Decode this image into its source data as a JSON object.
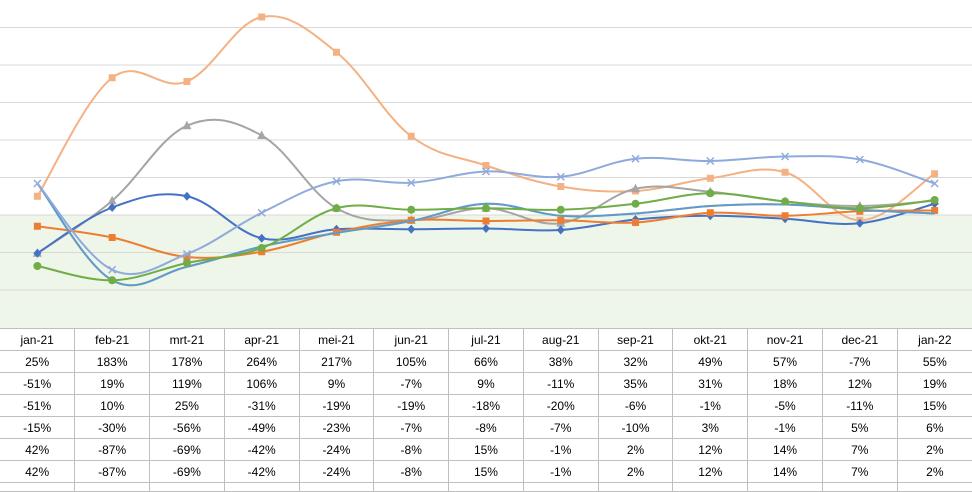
{
  "chart_data": {
    "type": "line",
    "categories": [
      "jan-21",
      "feb-21",
      "mrt-21",
      "apr-21",
      "mei-21",
      "jun-21",
      "jul-21",
      "aug-21",
      "sep-21",
      "okt-21",
      "nov-21",
      "dec-21",
      "jan-22"
    ],
    "ylim": [
      -100,
      300
    ],
    "grid": true,
    "legend": "none",
    "colors": {
      "band": "#eef5e9",
      "grid": "#d9d9d9"
    },
    "series": [
      {
        "color": "#f4b183",
        "marker": "square",
        "values": [
          25,
          183,
          178,
          264,
          217,
          105,
          66,
          38,
          32,
          49,
          57,
          -7,
          55
        ]
      },
      {
        "color": "#a5a5a5",
        "marker": "triangle",
        "values": [
          -51,
          19,
          119,
          106,
          9,
          -7,
          9,
          -11,
          35,
          31,
          18,
          12,
          19
        ]
      },
      {
        "color": "#4472c4",
        "marker": "diamond",
        "values": [
          -51,
          10,
          25,
          -31,
          -19,
          -19,
          -18,
          -20,
          -6,
          -1,
          -5,
          -11,
          15
        ]
      },
      {
        "color": "#ed7d31",
        "marker": "square",
        "values": [
          -15,
          -30,
          -56,
          -49,
          -23,
          -7,
          -8,
          -7,
          -10,
          3,
          -1,
          5,
          6
        ]
      },
      {
        "color": "#ffc000",
        "marker": "none",
        "values": [
          42,
          -87,
          -69,
          -42,
          -24,
          -8,
          15,
          -1,
          2,
          12,
          14,
          7,
          2
        ]
      },
      {
        "color": "#5b9bd5",
        "marker": "none",
        "values": [
          42,
          -87,
          -69,
          -42,
          -24,
          -8,
          15,
          -1,
          2,
          12,
          14,
          7,
          2
        ]
      },
      {
        "color": "#8faadc",
        "marker": "x",
        "values": [
          42,
          -73,
          -52,
          3,
          45,
          43,
          58,
          51,
          75,
          72,
          78,
          74,
          42
        ]
      },
      {
        "color": "#70ad47",
        "marker": "circle",
        "values": [
          -68,
          -87,
          -64,
          -44,
          9,
          7,
          9,
          7,
          15,
          29,
          18,
          9,
          20
        ]
      }
    ],
    "table": {
      "header": [
        "jan-21",
        "feb-21",
        "mrt-21",
        "apr-21",
        "mei-21",
        "jun-21",
        "jul-21",
        "aug-21",
        "sep-21",
        "okt-21",
        "nov-21",
        "dec-21",
        "jan-22"
      ],
      "rows": [
        [
          "25%",
          "183%",
          "178%",
          "264%",
          "217%",
          "105%",
          "66%",
          "38%",
          "32%",
          "49%",
          "57%",
          "-7%",
          "55%"
        ],
        [
          "-51%",
          "19%",
          "119%",
          "106%",
          "9%",
          "-7%",
          "9%",
          "-11%",
          "35%",
          "31%",
          "18%",
          "12%",
          "19%"
        ],
        [
          "-51%",
          "10%",
          "25%",
          "-31%",
          "-19%",
          "-19%",
          "-18%",
          "-20%",
          "-6%",
          "-1%",
          "-5%",
          "-11%",
          "15%"
        ],
        [
          "-15%",
          "-30%",
          "-56%",
          "-49%",
          "-23%",
          "-7%",
          "-8%",
          "-7%",
          "-10%",
          "3%",
          "-1%",
          "5%",
          "6%"
        ],
        [
          "42%",
          "-87%",
          "-69%",
          "-42%",
          "-24%",
          "-8%",
          "15%",
          "-1%",
          "2%",
          "12%",
          "14%",
          "7%",
          "2%"
        ],
        [
          "42%",
          "-87%",
          "-69%",
          "-42%",
          "-24%",
          "-8%",
          "15%",
          "-1%",
          "2%",
          "12%",
          "14%",
          "7%",
          "2%"
        ]
      ]
    }
  }
}
